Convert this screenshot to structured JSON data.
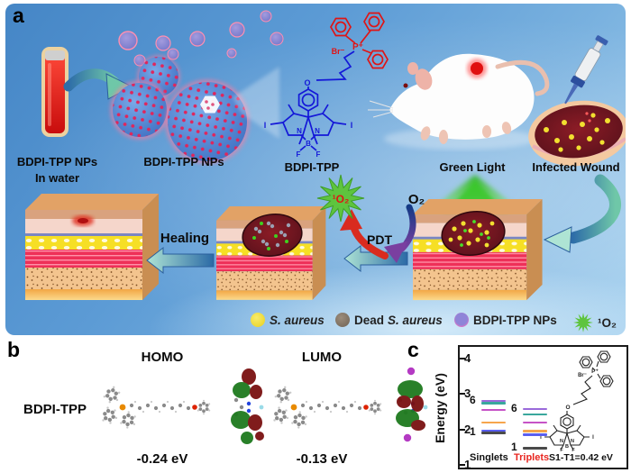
{
  "figure": {
    "panel_a": {
      "label": "a",
      "tube_caption_line1": "BDPI-TPP NPs",
      "tube_caption_line2": "In water",
      "nps_caption": "BDPI-TPP NPs",
      "molecule_caption": "BDPI-TPP",
      "green_light_caption": "Green Light",
      "infected_wound_caption": "Infected Wound",
      "healing_caption": "Healing",
      "pdt_caption": "PDT",
      "oxygen": "O₂",
      "singlet_oxygen": "¹O₂",
      "legend": [
        {
          "prefix": "",
          "italic": "S. aureus",
          "color": "#f2de3d",
          "icon": "yellow-circle"
        },
        {
          "prefix": "Dead",
          "italic": "S. aureus",
          "color": "#877969",
          "icon": "gray-circle"
        },
        {
          "prefix": "BDPI-TPP NPs",
          "italic": "",
          "color": "#c77fd4",
          "icon": "nanoparticle-circle"
        },
        {
          "prefix": "¹O₂",
          "italic": "",
          "color": "#5ec43e",
          "icon": "green-starburst"
        }
      ]
    },
    "molecule_atoms": {
      "br": "Br⁻",
      "p": "P⁺",
      "o": "O",
      "n": "N",
      "b": "B",
      "f": "F",
      "i": "I"
    },
    "panel_b": {
      "label": "b",
      "molecule": "BDPI-TPP",
      "homo_title": "HOMO",
      "homo_energy": "-0.24 eV",
      "lumo_title": "LUMO",
      "lumo_energy": "-0.13 eV"
    },
    "panel_c": {
      "label": "c"
    }
  },
  "chart_data": {
    "type": "energy-level-diagram",
    "ylabel": "Energy (eV)",
    "ylim": [
      1,
      4.4
    ],
    "yticks": [
      1,
      2,
      3,
      4
    ],
    "grid": false,
    "level_colors_low_to_high": [
      "#4a4a4a",
      "#5a5ff0",
      "#f6a54c",
      "#c653c6",
      "#3aa79d",
      "#9a6ada"
    ],
    "series": [
      {
        "name": "Singlets",
        "name_color": "#111111",
        "levels_eV": [
          1.93,
          2.0,
          2.23,
          2.58,
          2.77,
          2.84
        ],
        "first_label": "1",
        "last_label": "6"
      },
      {
        "name": "Triplets",
        "name_color": "#e8251f",
        "levels_eV": [
          1.51,
          1.89,
          1.99,
          2.23,
          2.46,
          2.61
        ],
        "first_label": "1",
        "last_label": "6"
      }
    ],
    "annotation": "S1-T1=0.42 eV",
    "legend_position": "bottom-inside"
  }
}
